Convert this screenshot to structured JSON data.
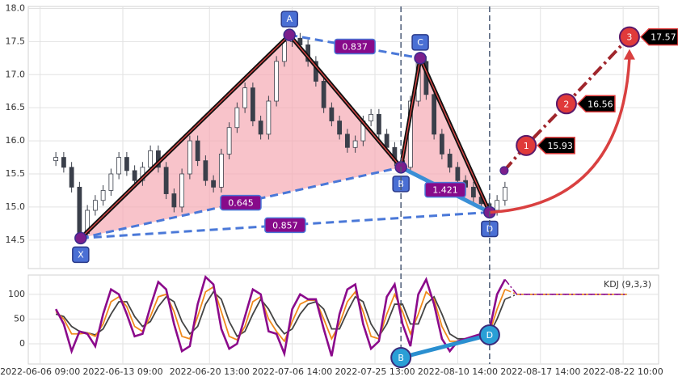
{
  "chart_data": [
    {
      "type": "candlestick",
      "x": [
        4,
        6,
        8,
        10,
        12,
        14,
        16,
        18,
        20,
        22,
        24,
        26,
        28,
        30,
        32,
        34,
        36,
        38,
        40,
        42,
        44,
        46,
        48,
        50,
        52,
        54,
        56,
        58,
        60,
        62,
        64,
        66,
        68,
        70,
        72,
        74,
        76,
        78,
        80,
        82,
        84,
        86,
        88,
        90,
        92,
        94,
        96,
        98,
        100,
        102,
        104,
        106,
        108,
        110,
        112,
        114,
        116,
        118
      ],
      "open": [
        15.7,
        15.75,
        15.6,
        15.3,
        14.6,
        14.95,
        15.1,
        15.25,
        15.5,
        15.75,
        15.55,
        15.4,
        15.6,
        15.85,
        15.6,
        15.2,
        15.0,
        15.5,
        16.0,
        15.7,
        15.4,
        15.3,
        15.8,
        16.2,
        16.5,
        16.8,
        16.3,
        16.1,
        16.6,
        17.2,
        17.5,
        17.55,
        17.45,
        17.2,
        16.9,
        16.5,
        16.3,
        16.1,
        15.9,
        16.0,
        16.3,
        16.4,
        16.1,
        15.9,
        15.7,
        15.6,
        16.6,
        17.2,
        16.7,
        16.1,
        15.8,
        15.6,
        15.4,
        15.3,
        15.15,
        15.05,
        14.95,
        15.1
      ],
      "high": [
        15.83,
        15.83,
        15.68,
        15.38,
        15.03,
        15.18,
        15.33,
        15.58,
        15.83,
        15.83,
        15.63,
        15.68,
        15.93,
        15.93,
        15.68,
        15.28,
        15.58,
        16.08,
        16.08,
        15.78,
        15.48,
        15.88,
        16.28,
        16.58,
        16.88,
        16.88,
        16.38,
        16.68,
        17.28,
        17.58,
        17.63,
        17.63,
        17.53,
        17.28,
        16.98,
        16.58,
        16.38,
        16.18,
        16.08,
        16.38,
        16.48,
        16.48,
        16.18,
        15.98,
        15.78,
        16.68,
        17.28,
        17.28,
        16.78,
        16.18,
        15.88,
        15.68,
        15.48,
        15.38,
        15.23,
        15.13,
        15.18,
        15.38
      ],
      "low": [
        15.62,
        15.52,
        15.22,
        14.52,
        14.52,
        14.87,
        15.02,
        15.17,
        15.42,
        15.47,
        15.32,
        15.32,
        15.52,
        15.52,
        15.12,
        14.92,
        14.92,
        15.42,
        15.62,
        15.32,
        15.22,
        15.22,
        15.72,
        16.12,
        16.42,
        16.22,
        16.02,
        16.02,
        16.52,
        17.12,
        17.42,
        17.37,
        17.12,
        16.82,
        16.42,
        16.22,
        16.02,
        15.82,
        15.82,
        15.92,
        16.22,
        16.02,
        15.82,
        15.62,
        15.52,
        15.52,
        16.52,
        16.62,
        16.02,
        15.72,
        15.52,
        15.32,
        15.22,
        15.07,
        14.97,
        14.87,
        14.87,
        15.02
      ],
      "close": [
        15.75,
        15.6,
        15.3,
        14.6,
        14.95,
        15.1,
        15.25,
        15.5,
        15.75,
        15.55,
        15.4,
        15.6,
        15.85,
        15.6,
        15.2,
        15.0,
        15.5,
        16.0,
        15.7,
        15.4,
        15.3,
        15.8,
        16.2,
        16.5,
        16.8,
        16.3,
        16.1,
        16.6,
        17.2,
        17.5,
        17.55,
        17.45,
        17.2,
        16.9,
        16.5,
        16.3,
        16.1,
        15.9,
        16.0,
        16.3,
        16.4,
        16.1,
        15.9,
        15.7,
        15.6,
        16.6,
        17.2,
        16.7,
        16.1,
        15.8,
        15.6,
        15.4,
        15.3,
        15.15,
        15.05,
        14.95,
        15.1,
        15.3
      ],
      "up_color": "#ffffff",
      "down_color": "#3a3f4a",
      "xlim": [
        -3,
        157
      ],
      "ylim": [
        14.07,
        18.03
      ],
      "yticks": [
        14.5,
        {
          "value": 15,
          "label": "15.0"
        },
        15.5,
        {
          "value": 16,
          "label": "16.0"
        },
        16.5,
        {
          "value": 17,
          "label": "17.0"
        },
        17.5,
        {
          "value": 18,
          "label": "18.0"
        }
      ],
      "grid": true,
      "pattern": {
        "points": [
          {
            "label": "X",
            "x": 10.3,
            "value": 14.53
          },
          {
            "label": "A",
            "x": 63.3,
            "value": 17.6
          },
          {
            "label": "B",
            "x": 91.6,
            "value": 15.6
          },
          {
            "label": "C",
            "x": 96.5,
            "value": 17.25
          },
          {
            "label": "D",
            "x": 114.1,
            "value": 14.92
          }
        ],
        "ratios": [
          {
            "from": 1,
            "to": 3,
            "value": 0.837,
            "style": "dashed"
          },
          {
            "from": 0,
            "to": 2,
            "value": 0.645,
            "style": "dashed"
          },
          {
            "from": 2,
            "to": 4,
            "value": 1.421,
            "style": "solid"
          },
          {
            "from": 0,
            "to": 4,
            "value": 0.857,
            "style": "dashed"
          }
        ],
        "current": {
          "x": 117.8,
          "value": 15.55
        },
        "targets": [
          {
            "label": "1",
            "x": 123.4,
            "value": 15.93
          },
          {
            "label": "2",
            "x": 133.6,
            "value": 16.56
          },
          {
            "label": "3",
            "x": 149.6,
            "value": 17.57
          }
        ]
      }
    },
    {
      "type": "line",
      "legend_label": "KDJ (9,3,3)",
      "x": [
        4,
        6,
        8,
        10,
        12,
        14,
        16,
        18,
        20,
        22,
        24,
        26,
        28,
        30,
        32,
        34,
        36,
        38,
        40,
        42,
        44,
        46,
        48,
        50,
        52,
        54,
        56,
        58,
        60,
        62,
        64,
        66,
        68,
        70,
        72,
        74,
        76,
        78,
        80,
        82,
        84,
        86,
        88,
        90,
        92,
        94,
        96,
        98,
        100,
        102,
        104,
        106,
        108,
        110,
        112,
        114,
        116,
        118
      ],
      "projection_x": [
        118,
        121,
        149
      ],
      "series": [
        {
          "color": "#444444",
          "values": [
            60,
            55,
            35,
            25,
            22,
            18,
            30,
            60,
            85,
            85,
            55,
            35,
            45,
            75,
            95,
            85,
            45,
            20,
            35,
            80,
            105,
            90,
            45,
            15,
            25,
            60,
            90,
            70,
            40,
            20,
            30,
            60,
            80,
            85,
            70,
            30,
            30,
            65,
            95,
            85,
            40,
            15,
            40,
            80,
            80,
            40,
            40,
            80,
            95,
            60,
            20,
            10,
            10,
            12,
            15,
            18,
            50,
            90
          ],
          "projection_values": [
            90,
            100,
            100
          ]
        },
        {
          "color": "#f08a1c",
          "values": [
            65,
            50,
            20,
            20,
            22,
            15,
            40,
            85,
            95,
            75,
            35,
            25,
            55,
            95,
            100,
            65,
            15,
            10,
            55,
            105,
            115,
            65,
            15,
            8,
            35,
            85,
            95,
            50,
            25,
            5,
            45,
            80,
            88,
            88,
            50,
            10,
            40,
            85,
            105,
            65,
            15,
            10,
            60,
            100,
            65,
            20,
            60,
            105,
            90,
            35,
            5,
            5,
            8,
            12,
            16,
            20,
            70,
            110
          ],
          "projection_values": [
            110,
            100,
            100
          ]
        },
        {
          "color": "#8b0a8b",
          "values": [
            70,
            40,
            -15,
            25,
            20,
            -5,
            60,
            110,
            100,
            60,
            15,
            20,
            75,
            125,
            110,
            40,
            -15,
            -5,
            80,
            135,
            120,
            30,
            -10,
            0,
            55,
            110,
            100,
            25,
            20,
            -20,
            70,
            100,
            90,
            90,
            30,
            -25,
            60,
            110,
            120,
            40,
            -10,
            5,
            95,
            120,
            40,
            -5,
            100,
            130,
            80,
            10,
            -15,
            5,
            10,
            15,
            20,
            25,
            100,
            130
          ],
          "projection_values": [
            130,
            100,
            100
          ]
        }
      ],
      "markers": [
        {
          "label": "B",
          "x": 91.6,
          "value": -28
        },
        {
          "label": "D",
          "x": 114.1,
          "value": 18
        }
      ],
      "xlim": [
        -3,
        157
      ],
      "ylim": [
        -41,
        139
      ],
      "yticks": [
        0,
        50,
        100
      ],
      "grid": true,
      "xticks": [
        {
          "value": 0,
          "label": "2022-06-06 09:00"
        },
        {
          "value": 21,
          "label": "2022-06-13 09:00"
        },
        {
          "value": 43,
          "label": "2022-06-20 13:00"
        },
        {
          "value": 64,
          "label": "2022-07-06 14:00"
        },
        {
          "value": 85,
          "label": "2022-07-25 13:00"
        },
        {
          "value": 106,
          "label": "2022-08-10 14:00"
        },
        {
          "value": 127,
          "label": "2022-08-17 14:00"
        },
        {
          "value": 148,
          "label": "2022-08-22 10:00"
        }
      ]
    }
  ]
}
